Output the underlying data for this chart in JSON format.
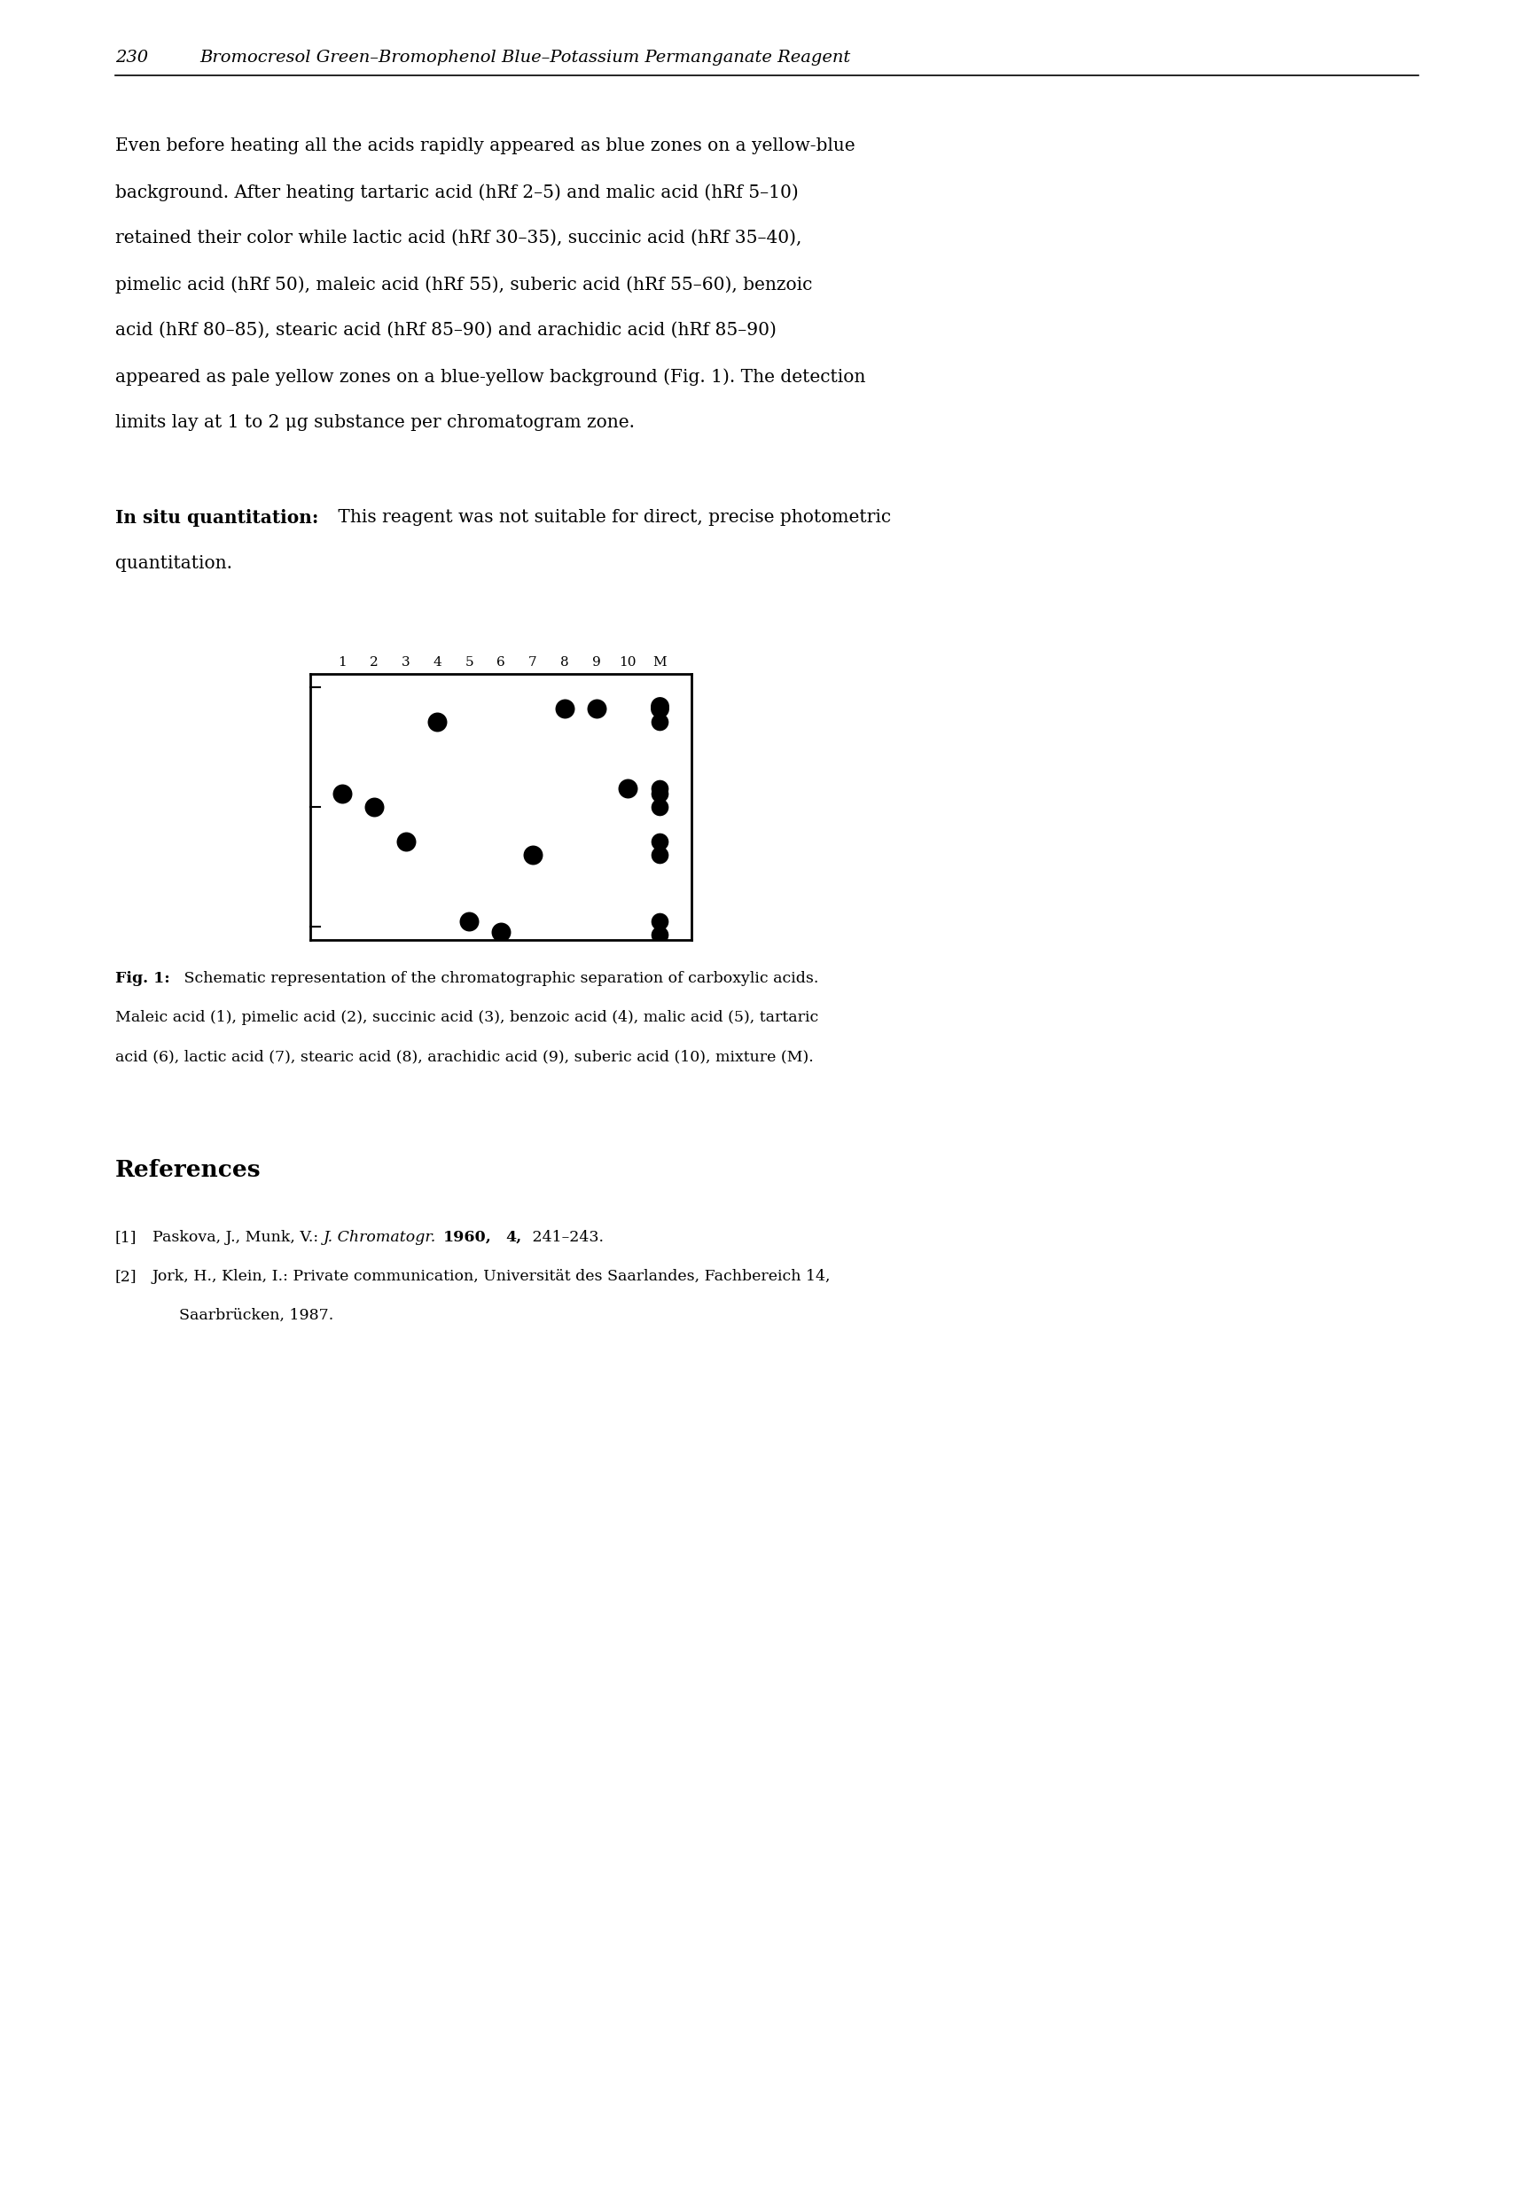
{
  "page_width": 17.27,
  "page_height": 24.81,
  "bg_color": "#ffffff",
  "header_page_num": "230",
  "header_title": "Bromocresol Green–Bromophenol Blue–Potassium Permanganate Reagent",
  "lane_labels": [
    "1",
    "2",
    "3",
    "4",
    "5",
    "6",
    "7",
    "8",
    "9",
    "10",
    "M"
  ],
  "spots": {
    "data": [
      [
        0,
        55,
        1.0
      ],
      [
        1,
        50,
        1.0
      ],
      [
        2,
        37,
        1.0
      ],
      [
        3,
        82,
        1.0
      ],
      [
        4,
        7,
        1.0
      ],
      [
        5,
        3,
        1.0
      ],
      [
        6,
        32,
        1.0
      ],
      [
        7,
        87,
        1.0
      ],
      [
        8,
        87,
        1.0
      ],
      [
        9,
        57,
        1.0
      ],
      [
        10,
        2,
        0.8
      ],
      [
        10,
        7,
        0.8
      ],
      [
        10,
        32,
        0.8
      ],
      [
        10,
        37,
        0.8
      ],
      [
        10,
        50,
        0.8
      ],
      [
        10,
        55,
        0.8
      ],
      [
        10,
        57,
        0.8
      ],
      [
        10,
        82,
        0.8
      ],
      [
        10,
        87,
        0.9
      ],
      [
        10,
        88,
        0.9
      ]
    ],
    "dot_color": "#000000",
    "dot_size": 100
  },
  "body_fontsize": 14.5,
  "header_fontsize": 14.0,
  "caption_fontsize": 12.5,
  "ref_fontsize": 12.5,
  "ref_title_fontsize": 19
}
